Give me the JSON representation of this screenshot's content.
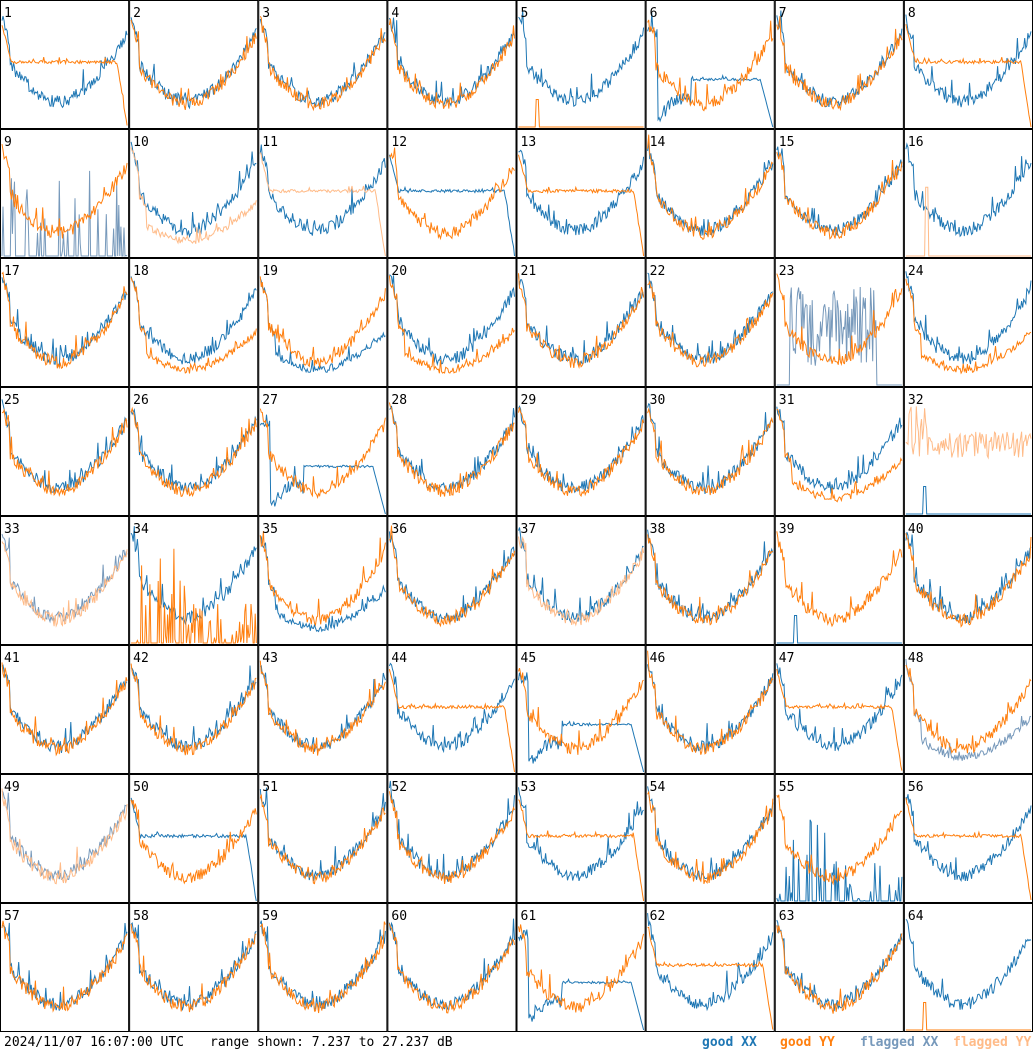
{
  "footer": {
    "timestamp": "2024/11/07 16:07:00 UTC",
    "range_text": "range shown: 7.237 to 27.237 dB"
  },
  "legend": {
    "good_xx": {
      "label": "good XX",
      "color": "#1f77b4"
    },
    "good_yy": {
      "label": "good YY",
      "color": "#ff7f0e"
    },
    "flagged_xx": {
      "label": "flagged XX",
      "color": "#7799bb"
    },
    "flagged_yy": {
      "label": "flagged YY",
      "color": "#ffbb88"
    }
  },
  "chart_data": {
    "type": "line",
    "grid": {
      "rows": 8,
      "cols": 8
    },
    "y_unit": "dB",
    "ylim": [
      7.237,
      27.237
    ],
    "series": [
      "XX",
      "YY"
    ],
    "tiles": [
      {
        "id": 1,
        "xx": "normal",
        "yy": "rolloff"
      },
      {
        "id": 2,
        "xx": "normal",
        "yy": "normal"
      },
      {
        "id": 3,
        "xx": "normal",
        "yy": "normal"
      },
      {
        "id": 4,
        "xx": "normal",
        "yy": "normal"
      },
      {
        "id": 5,
        "xx": "normal",
        "yy": "spike"
      },
      {
        "id": 6,
        "xx": "dip",
        "yy": "normal"
      },
      {
        "id": 7,
        "xx": "normal",
        "yy": "normal"
      },
      {
        "id": 8,
        "xx": "normal",
        "yy": "rolloff"
      },
      {
        "id": 9,
        "xx": "flagged-spikes",
        "yy": "normal"
      },
      {
        "id": 10,
        "xx": "normal",
        "yy": "flagged-low"
      },
      {
        "id": 11,
        "xx": "normal",
        "yy": "flagged-rolloff"
      },
      {
        "id": 12,
        "xx": "rolloff",
        "yy": "normal"
      },
      {
        "id": 13,
        "xx": "normal",
        "yy": "rolloff"
      },
      {
        "id": 14,
        "xx": "normal",
        "yy": "normal"
      },
      {
        "id": 15,
        "xx": "normal",
        "yy": "normal"
      },
      {
        "id": 16,
        "xx": "normal",
        "yy": "flagged-spike"
      },
      {
        "id": 17,
        "xx": "normal",
        "yy": "normal"
      },
      {
        "id": 18,
        "xx": "normal",
        "yy": "low"
      },
      {
        "id": 19,
        "xx": "low",
        "yy": "normal"
      },
      {
        "id": 20,
        "xx": "normal",
        "yy": "low"
      },
      {
        "id": 21,
        "xx": "normal",
        "yy": "normal"
      },
      {
        "id": 22,
        "xx": "normal",
        "yy": "normal"
      },
      {
        "id": 23,
        "xx": "flagged-noise",
        "yy": "normal"
      },
      {
        "id": 24,
        "xx": "normal",
        "yy": "low"
      },
      {
        "id": 25,
        "xx": "normal",
        "yy": "normal"
      },
      {
        "id": 26,
        "xx": "normal",
        "yy": "normal"
      },
      {
        "id": 27,
        "xx": "dip",
        "yy": "normal"
      },
      {
        "id": 28,
        "xx": "normal",
        "yy": "normal"
      },
      {
        "id": 29,
        "xx": "normal",
        "yy": "normal"
      },
      {
        "id": 30,
        "xx": "normal",
        "yy": "normal"
      },
      {
        "id": 31,
        "xx": "normal",
        "yy": "low"
      },
      {
        "id": 32,
        "xx": "spike",
        "yy": "flagged-noisy"
      },
      {
        "id": 33,
        "xx": "flagged-normal",
        "yy": "flagged-normal"
      },
      {
        "id": 34,
        "xx": "normal",
        "yy": "spikes"
      },
      {
        "id": 35,
        "xx": "low",
        "yy": "normal"
      },
      {
        "id": 36,
        "xx": "normal",
        "yy": "normal"
      },
      {
        "id": 37,
        "xx": "normal",
        "yy": "flagged-normal"
      },
      {
        "id": 38,
        "xx": "normal",
        "yy": "normal"
      },
      {
        "id": 39,
        "xx": "spike",
        "yy": "normal"
      },
      {
        "id": 40,
        "xx": "normal",
        "yy": "normal"
      },
      {
        "id": 41,
        "xx": "normal",
        "yy": "normal"
      },
      {
        "id": 42,
        "xx": "normal",
        "yy": "normal"
      },
      {
        "id": 43,
        "xx": "normal",
        "yy": "normal"
      },
      {
        "id": 44,
        "xx": "normal",
        "yy": "rolloff"
      },
      {
        "id": 45,
        "xx": "dip",
        "yy": "normal"
      },
      {
        "id": 46,
        "xx": "normal",
        "yy": "normal"
      },
      {
        "id": 47,
        "xx": "normal",
        "yy": "rolloff"
      },
      {
        "id": 48,
        "xx": "flagged-low",
        "yy": "normal"
      },
      {
        "id": 49,
        "xx": "flagged-normal",
        "yy": "flagged-normal"
      },
      {
        "id": 50,
        "xx": "rolloff",
        "yy": "normal"
      },
      {
        "id": 51,
        "xx": "normal",
        "yy": "normal"
      },
      {
        "id": 52,
        "xx": "normal",
        "yy": "normal"
      },
      {
        "id": 53,
        "xx": "normal",
        "yy": "rolloff"
      },
      {
        "id": 54,
        "xx": "normal",
        "yy": "normal"
      },
      {
        "id": 55,
        "xx": "spikes",
        "yy": "normal"
      },
      {
        "id": 56,
        "xx": "normal",
        "yy": "rolloff"
      },
      {
        "id": 57,
        "xx": "normal",
        "yy": "normal"
      },
      {
        "id": 58,
        "xx": "normal",
        "yy": "normal"
      },
      {
        "id": 59,
        "xx": "normal",
        "yy": "normal"
      },
      {
        "id": 60,
        "xx": "normal",
        "yy": "normal"
      },
      {
        "id": 61,
        "xx": "dip",
        "yy": "normal"
      },
      {
        "id": 62,
        "xx": "normal",
        "yy": "rolloff"
      },
      {
        "id": 63,
        "xx": "normal",
        "yy": "normal"
      },
      {
        "id": 64,
        "xx": "normal",
        "yy": "spike"
      }
    ]
  }
}
